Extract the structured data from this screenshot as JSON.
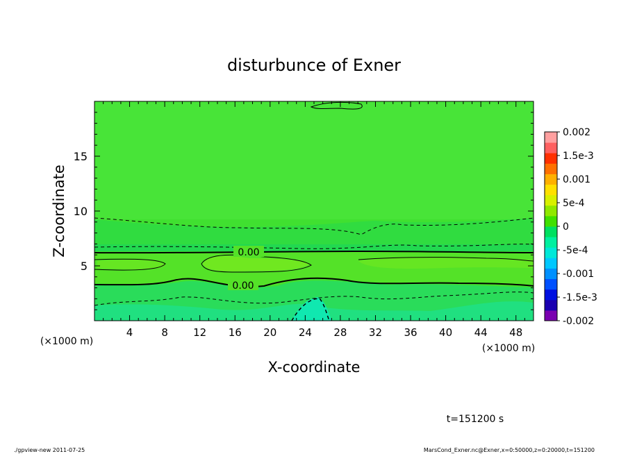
{
  "chart_data": {
    "type": "heatmap",
    "title": "disturbunce of Exner",
    "xlabel": "X-coordinate",
    "ylabel": "Z-coordinate",
    "x_unit": "(×1000 m)",
    "y_unit": "(×1000 m)",
    "xlim": [
      0,
      50
    ],
    "ylim": [
      0,
      20
    ],
    "x_ticks": [
      4,
      8,
      12,
      16,
      20,
      24,
      28,
      32,
      36,
      40,
      44,
      48
    ],
    "y_ticks": [
      5,
      10,
      15
    ],
    "colorbar": {
      "labels": [
        "0.002",
        "1.5e-3",
        "0.001",
        "5e-4",
        "0",
        "-5e-4",
        "-0.001",
        "-1.5e-3",
        "-0.002"
      ],
      "range": [
        -0.002,
        0.002
      ],
      "colors": [
        "#7a00b0",
        "#1a00b0",
        "#0010e0",
        "#0050ff",
        "#0090ff",
        "#00c8ff",
        "#00e8d8",
        "#00f0a0",
        "#00e060",
        "#40e000",
        "#90e800",
        "#d8f000",
        "#ffe000",
        "#ffb000",
        "#ff7000",
        "#ff3000",
        "#ff6060",
        "#ffa0a0"
      ]
    },
    "contour_labels": [
      "0.00",
      "0.00"
    ],
    "time_label": "t=151200 s"
  },
  "footer": {
    "left": "./gpview-new   2011-07-25",
    "right": "MarsCond_Exner.nc@Exner,x=0:50000,z=0:20000,t=151200"
  }
}
